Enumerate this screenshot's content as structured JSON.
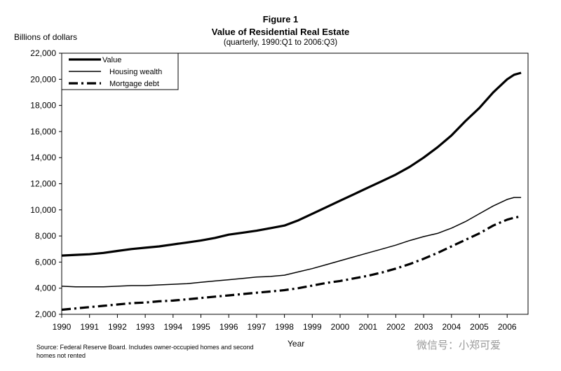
{
  "chart_data": {
    "type": "line",
    "figure_label": "Figure 1",
    "title": "Value of Residential Real Estate",
    "subtitle": "(quarterly, 1990:Q1 to 2006:Q3)",
    "ylabel": "Billions of dollars",
    "xlabel": "Year",
    "ylim": [
      2000,
      22000
    ],
    "xlim": [
      1990,
      2006.75
    ],
    "x_ticks": [
      1990,
      1991,
      1992,
      1993,
      1994,
      1995,
      1996,
      1997,
      1998,
      1999,
      2000,
      2001,
      2002,
      2003,
      2004,
      2005,
      2006
    ],
    "y_ticks": [
      2000,
      4000,
      6000,
      8000,
      10000,
      12000,
      14000,
      16000,
      18000,
      20000,
      22000
    ],
    "y_tick_labels": [
      "2,000",
      "4,000",
      "6,000",
      "8,000",
      "10,000",
      "12,000",
      "14,000",
      "16,000",
      "18,000",
      "20,000",
      "22,000"
    ],
    "grid": false,
    "legend_position": "top-left",
    "x": [
      1990,
      1990.5,
      1991,
      1991.5,
      1992,
      1992.5,
      1993,
      1993.5,
      1994,
      1994.5,
      1995,
      1995.5,
      1996,
      1996.5,
      1997,
      1997.5,
      1998,
      1998.5,
      1999,
      1999.5,
      2000,
      2000.5,
      2001,
      2001.5,
      2002,
      2002.5,
      2003,
      2003.5,
      2004,
      2004.5,
      2005,
      2005.5,
      2006,
      2006.25,
      2006.5
    ],
    "series": [
      {
        "name": "Value",
        "style": "thick",
        "values": [
          6500,
          6550,
          6600,
          6700,
          6850,
          7000,
          7100,
          7200,
          7350,
          7500,
          7650,
          7850,
          8100,
          8250,
          8400,
          8600,
          8800,
          9200,
          9700,
          10200,
          10700,
          11200,
          11700,
          12200,
          12700,
          13300,
          14000,
          14800,
          15700,
          16800,
          17800,
          19000,
          20000,
          20350,
          20500
        ]
      },
      {
        "name": "Housing wealth",
        "style": "thin",
        "values": [
          4150,
          4100,
          4100,
          4100,
          4150,
          4200,
          4200,
          4250,
          4300,
          4350,
          4450,
          4550,
          4650,
          4750,
          4850,
          4900,
          5000,
          5250,
          5500,
          5800,
          6100,
          6400,
          6700,
          7000,
          7300,
          7650,
          7950,
          8200,
          8600,
          9100,
          9700,
          10300,
          10800,
          10950,
          10950
        ]
      },
      {
        "name": "Mortgage debt",
        "style": "dash-dot",
        "values": [
          2350,
          2450,
          2550,
          2650,
          2750,
          2850,
          2900,
          3000,
          3050,
          3150,
          3250,
          3350,
          3450,
          3550,
          3650,
          3750,
          3850,
          4000,
          4200,
          4400,
          4550,
          4750,
          4950,
          5200,
          5500,
          5850,
          6250,
          6700,
          7200,
          7700,
          8200,
          8800,
          9250,
          9400,
          9500
        ]
      }
    ],
    "source_note": "Source: Federal Reserve Board.  Includes owner-occupied homes and second homes not rented"
  },
  "watermark": "微信号：小郑可爱"
}
